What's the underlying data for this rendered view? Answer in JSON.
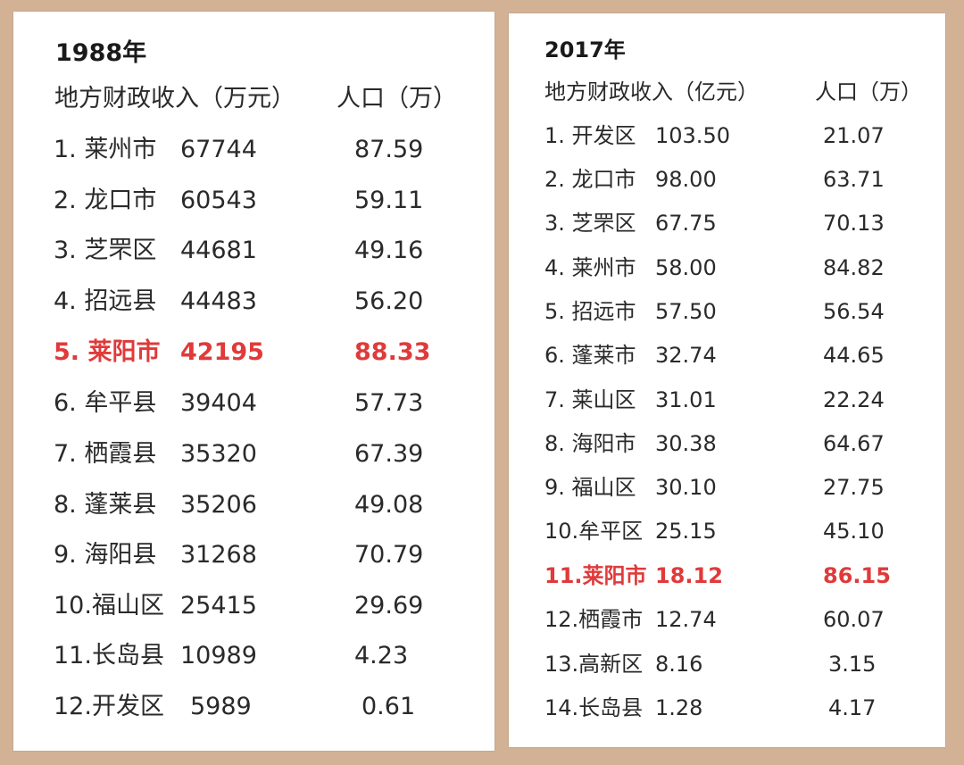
{
  "left_table": {
    "year": "1988年",
    "header": {
      "revenue": "地方财政收入（万元）",
      "population": "人口（万）"
    },
    "rows": [
      {
        "name": "1. 莱州市",
        "revenue": "67744",
        "population": "87.59"
      },
      {
        "name": "2. 龙口市",
        "revenue": "60543",
        "population": "59.11"
      },
      {
        "name": "3. 芝罘区",
        "revenue": "44681",
        "population": "49.16"
      },
      {
        "name": "4. 招远县",
        "revenue": "44483",
        "population": "56.20"
      },
      {
        "name": "5. 莱阳市",
        "revenue": "42195",
        "population": "88.33"
      },
      {
        "name": "6. 牟平县",
        "revenue": "39404",
        "population": "57.73"
      },
      {
        "name": "7. 栖霞县",
        "revenue": "35320",
        "population": "67.39"
      },
      {
        "name": "8. 蓬莱县",
        "revenue": "35206",
        "population": "49.08"
      },
      {
        "name": "9. 海阳县",
        "revenue": "31268",
        "population": "70.79"
      },
      {
        "name": "10.福山区",
        "revenue": "25415",
        "population": "29.69"
      },
      {
        "name": "11.长岛县",
        "revenue": "10989",
        "population": "4.23"
      },
      {
        "name": "12.开发区",
        "revenue": "5989",
        "population": "0.61"
      }
    ]
  },
  "right_table": {
    "year": "2017年",
    "header": {
      "revenue": "地方财政收入（亿元）",
      "population": "人口（万）"
    },
    "rows": [
      {
        "name": "1. 开发区",
        "revenue": "103.50",
        "population": "21.07"
      },
      {
        "name": "2. 龙口市",
        "revenue": "98.00",
        "population": "63.71"
      },
      {
        "name": "3. 芝罘区",
        "revenue": "67.75",
        "population": "70.13"
      },
      {
        "name": "4. 莱州市",
        "revenue": "58.00",
        "population": "84.82"
      },
      {
        "name": "5. 招远市",
        "revenue": "57.50",
        "population": "56.54"
      },
      {
        "name": "6. 蓬莱市",
        "revenue": "32.74",
        "population": "44.65"
      },
      {
        "name": "7. 莱山区",
        "revenue": "31.01",
        "population": "22.24"
      },
      {
        "name": "8. 海阳市",
        "revenue": "30.38",
        "population": "64.67"
      },
      {
        "name": "9. 福山区",
        "revenue": "30.10",
        "population": "27.75"
      },
      {
        "name": "10.牟平区",
        "revenue": "25.15",
        "population": "45.10"
      },
      {
        "name": "11.莱阳市",
        "revenue": "18.12",
        "population": "86.15"
      },
      {
        "name": "12.栖霞市",
        "revenue": "12.74",
        "population": "60.07"
      },
      {
        "name": "13.高新区",
        "revenue": "8.16",
        "population": "3.15"
      },
      {
        "name": "14.长岛县",
        "revenue": "1.28",
        "population": "4.17"
      }
    ]
  },
  "colors": {
    "highlight": "#e03a3a",
    "background": "#d2b195",
    "card": "#ffffff"
  }
}
